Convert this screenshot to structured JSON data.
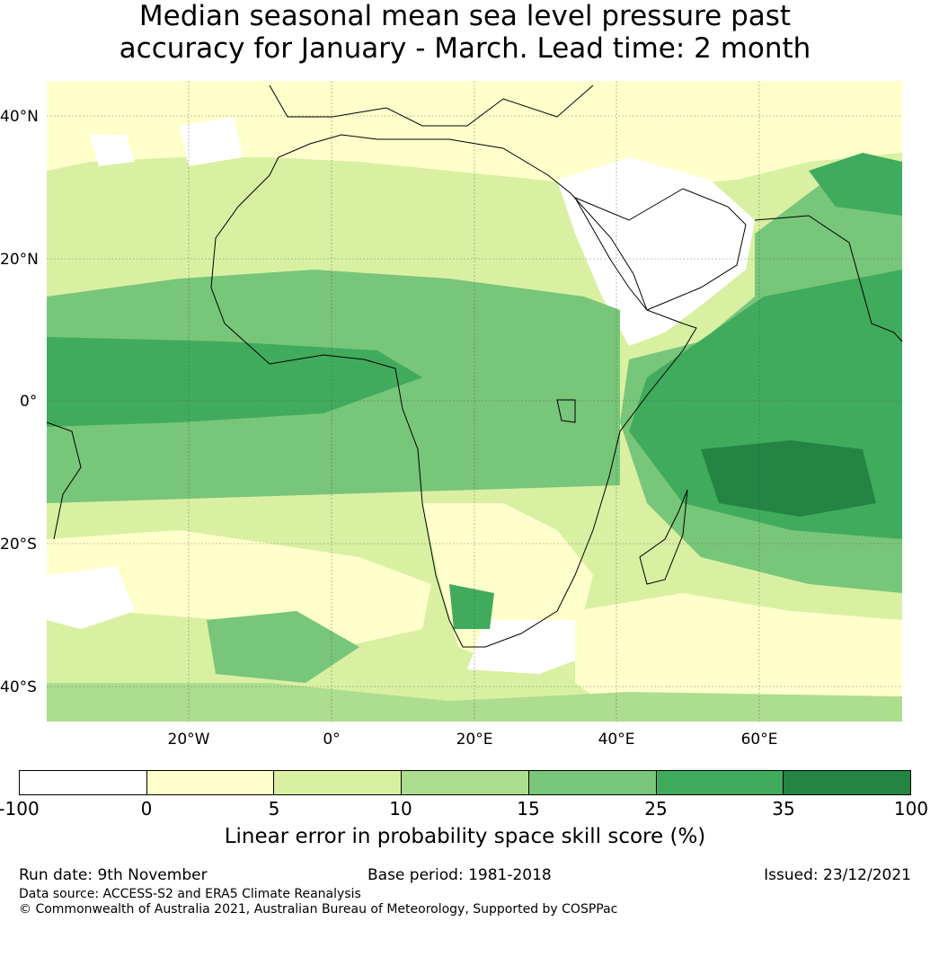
{
  "title": {
    "line1": "Median seasonal mean sea level pressure past",
    "line2": "accuracy for January - March. Lead time: 2 month"
  },
  "map": {
    "lat_labels": [
      "40°N",
      "20°N",
      "0°",
      "20°S",
      "40°S"
    ],
    "lat_values": [
      40,
      20,
      0,
      -20,
      -40
    ],
    "lon_labels": [
      "20°W",
      "0°",
      "20°E",
      "40°E",
      "60°E"
    ],
    "lon_values": [
      -20,
      0,
      20,
      40,
      60
    ],
    "extent": {
      "lon_min": -40,
      "lon_max": 80,
      "lat_min": -45,
      "lat_max": 45
    }
  },
  "colorbar": {
    "ticks": [
      "-100",
      "0",
      "5",
      "10",
      "15",
      "25",
      "35",
      "100"
    ],
    "colors": [
      "#ffffff",
      "#ffffcc",
      "#d9f0a3",
      "#addd8e",
      "#78c679",
      "#41ab5d",
      "#238443"
    ],
    "label": "Linear error in probability space skill score (%)"
  },
  "footer": {
    "run_date": "Run date: 9th November",
    "base_period": "Base period: 1981-2018",
    "issued": "Issued: 23/12/2021",
    "data_source": "Data source: ACCESS-S2 and ERA5 Climate Reanalysis",
    "copyright": "© Commonwealth of Australia 2021, Australian Bureau of Meteorology, Supported by COSPPac"
  }
}
